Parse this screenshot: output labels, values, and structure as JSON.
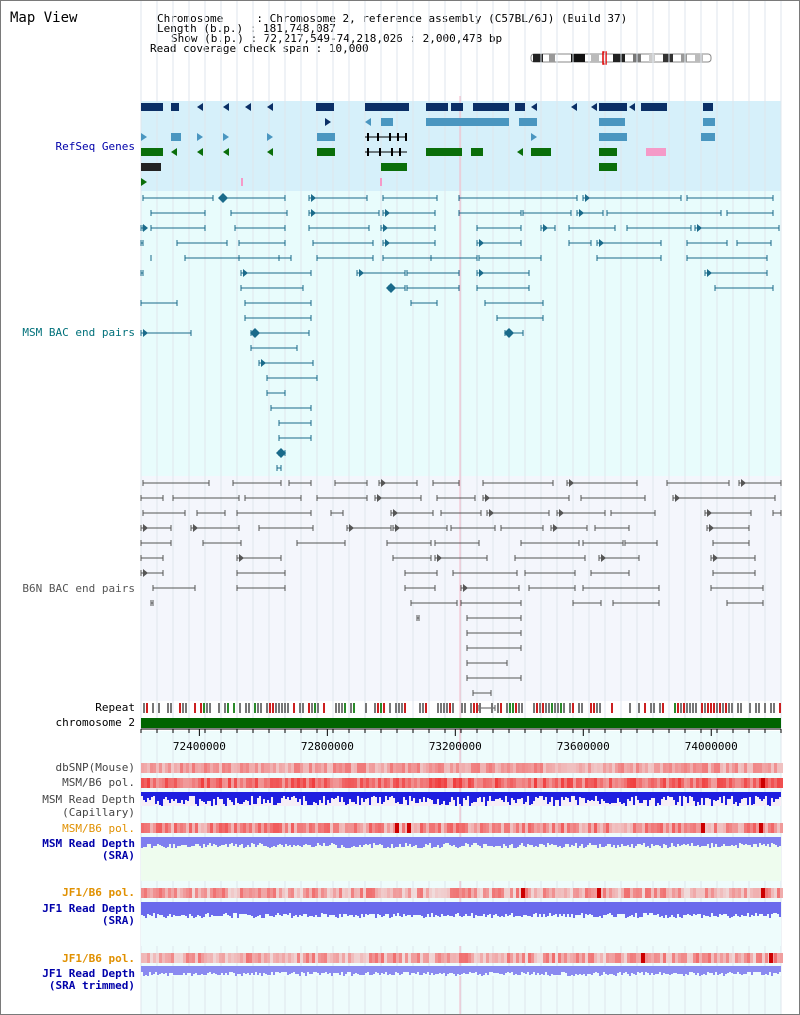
{
  "title": "Map View",
  "header": {
    "chromosome_label": "Chromosome",
    "chromosome_value": "Chromosome 2, reference assembly (C57BL/6J) (Build 37)",
    "length_label": "Length (b.p.)",
    "length_value": "181,748,087",
    "show_label": "Show (b.p.)",
    "show_value": "72,217,549-74,218,026 : 2,000,478 bp",
    "coverage_label": "Read coverage check span",
    "coverage_value": "10,000"
  },
  "view": {
    "start": 72217549,
    "end": 74218026
  },
  "tracks": {
    "refseq": "RefSeq Genes",
    "msm_bac": "MSM BAC end pairs",
    "b6n_bac": "B6N BAC end pairs",
    "repeat": "Repeat",
    "chromosome": "chromosome 2",
    "dbsnp": "dbSNP(Mouse)",
    "msm_b6_pol_1": "MSM/B6 pol.",
    "msm_read_depth_cap_1": "MSM Read Depth",
    "msm_read_depth_cap_2": "(Capillary)",
    "msm_b6_pol_2": "MSM/B6 pol.",
    "msm_read_depth_sra_1": "MSM Read Depth",
    "msm_read_depth_sra_2": "(SRA)",
    "jf1_b6_pol_1": "JF1/B6 pol.",
    "jf1_read_depth_sra_1": "JF1 Read Depth",
    "jf1_read_depth_sra_2": "(SRA)",
    "jf1_b6_pol_2": "JF1/B6 pol.",
    "jf1_read_depth_trim_1": "JF1 Read Depth",
    "jf1_read_depth_trim_2": "(SRA trimmed)"
  },
  "axis": {
    "ticks": [
      72400000,
      72800000,
      73200000,
      73600000,
      74000000
    ],
    "tick_labels": [
      "72400000",
      "72800000",
      "73200000",
      "73600000",
      "74000000"
    ]
  },
  "colors": {
    "refseq_bg": "#d6f0fa",
    "msm_bg": "#e8fcfc",
    "b6n_bg": "#f4f6fc",
    "gene_navy": "#0b2f66",
    "gene_blue": "#4a96c0",
    "gene_green": "#0a6e0a",
    "gene_pink": "#f59ac8",
    "msm_pair": "#1a6a8a",
    "b6n_pair": "#555555",
    "chromosome_bar": "#006400",
    "snp_red": "#e03030",
    "depth_blue": "#2222e0",
    "depth_light": "#7a7aee",
    "label_refseq": "#0000aa",
    "label_msm": "#00707a",
    "label_orange": "#e09000",
    "label_navy": "#0000aa"
  }
}
